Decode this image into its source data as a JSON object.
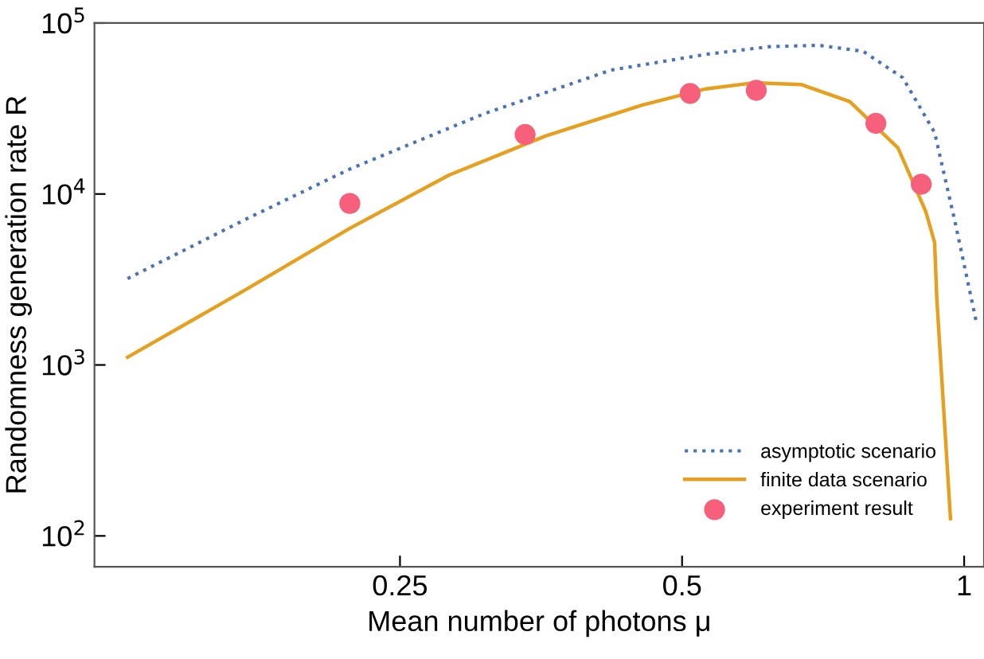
{
  "chart_data": {
    "type": "line",
    "xlabel": "Mean number of photons μ",
    "ylabel": "Randomness generation rate R",
    "log": "xy",
    "grid": false,
    "legend": "bottom right",
    "xlim": [
      0.118,
      1.05
    ],
    "ylim": [
      66,
      100000
    ],
    "xticks": [
      0.25,
      0.5,
      1
    ],
    "yticks": [
      {
        "value": 100,
        "label": "10$^{2}$"
      },
      {
        "value": 1000,
        "label": "10$^{3}$"
      },
      {
        "value": 10000,
        "label": "10$^{4}$"
      },
      {
        "value": 100000,
        "label": "10$^{5}$"
      }
    ],
    "series": [
      {
        "name": "asymptotic scenario",
        "line_style": "dotted",
        "marker": "none",
        "color": "#4a72b8",
        "x": [
          0.128,
          0.171,
          0.221,
          0.307,
          0.42,
          0.53,
          0.62,
          0.7,
          0.78,
          0.86,
          0.93,
          0.98,
          1.03
        ],
        "values": [
          3200,
          7100,
          14000,
          29400,
          53100,
          65600,
          72800,
          74100,
          68400,
          47900,
          22900,
          6500,
          1800
        ]
      },
      {
        "name": "finite data scenario",
        "line_style": "solid",
        "marker": "none",
        "color": "#e69f1e",
        "x": [
          0.128,
          0.171,
          0.221,
          0.282,
          0.358,
          0.453,
          0.53,
          0.596,
          0.67,
          0.755,
          0.85,
          0.91,
          0.93,
          0.935,
          0.967
        ],
        "values": [
          1110,
          2750,
          6300,
          12900,
          21900,
          33100,
          41200,
          44700,
          43700,
          34700,
          18600,
          7900,
          5200,
          2450,
          126
        ]
      },
      {
        "name": "experiment result",
        "type": "scatter",
        "marker": "circle",
        "color": "#f7607b",
        "x": [
          0.221,
          0.34,
          0.51,
          0.6,
          0.805,
          0.9
        ],
        "values": [
          8800,
          22300,
          38700,
          40400,
          25900,
          11400
        ]
      }
    ]
  }
}
